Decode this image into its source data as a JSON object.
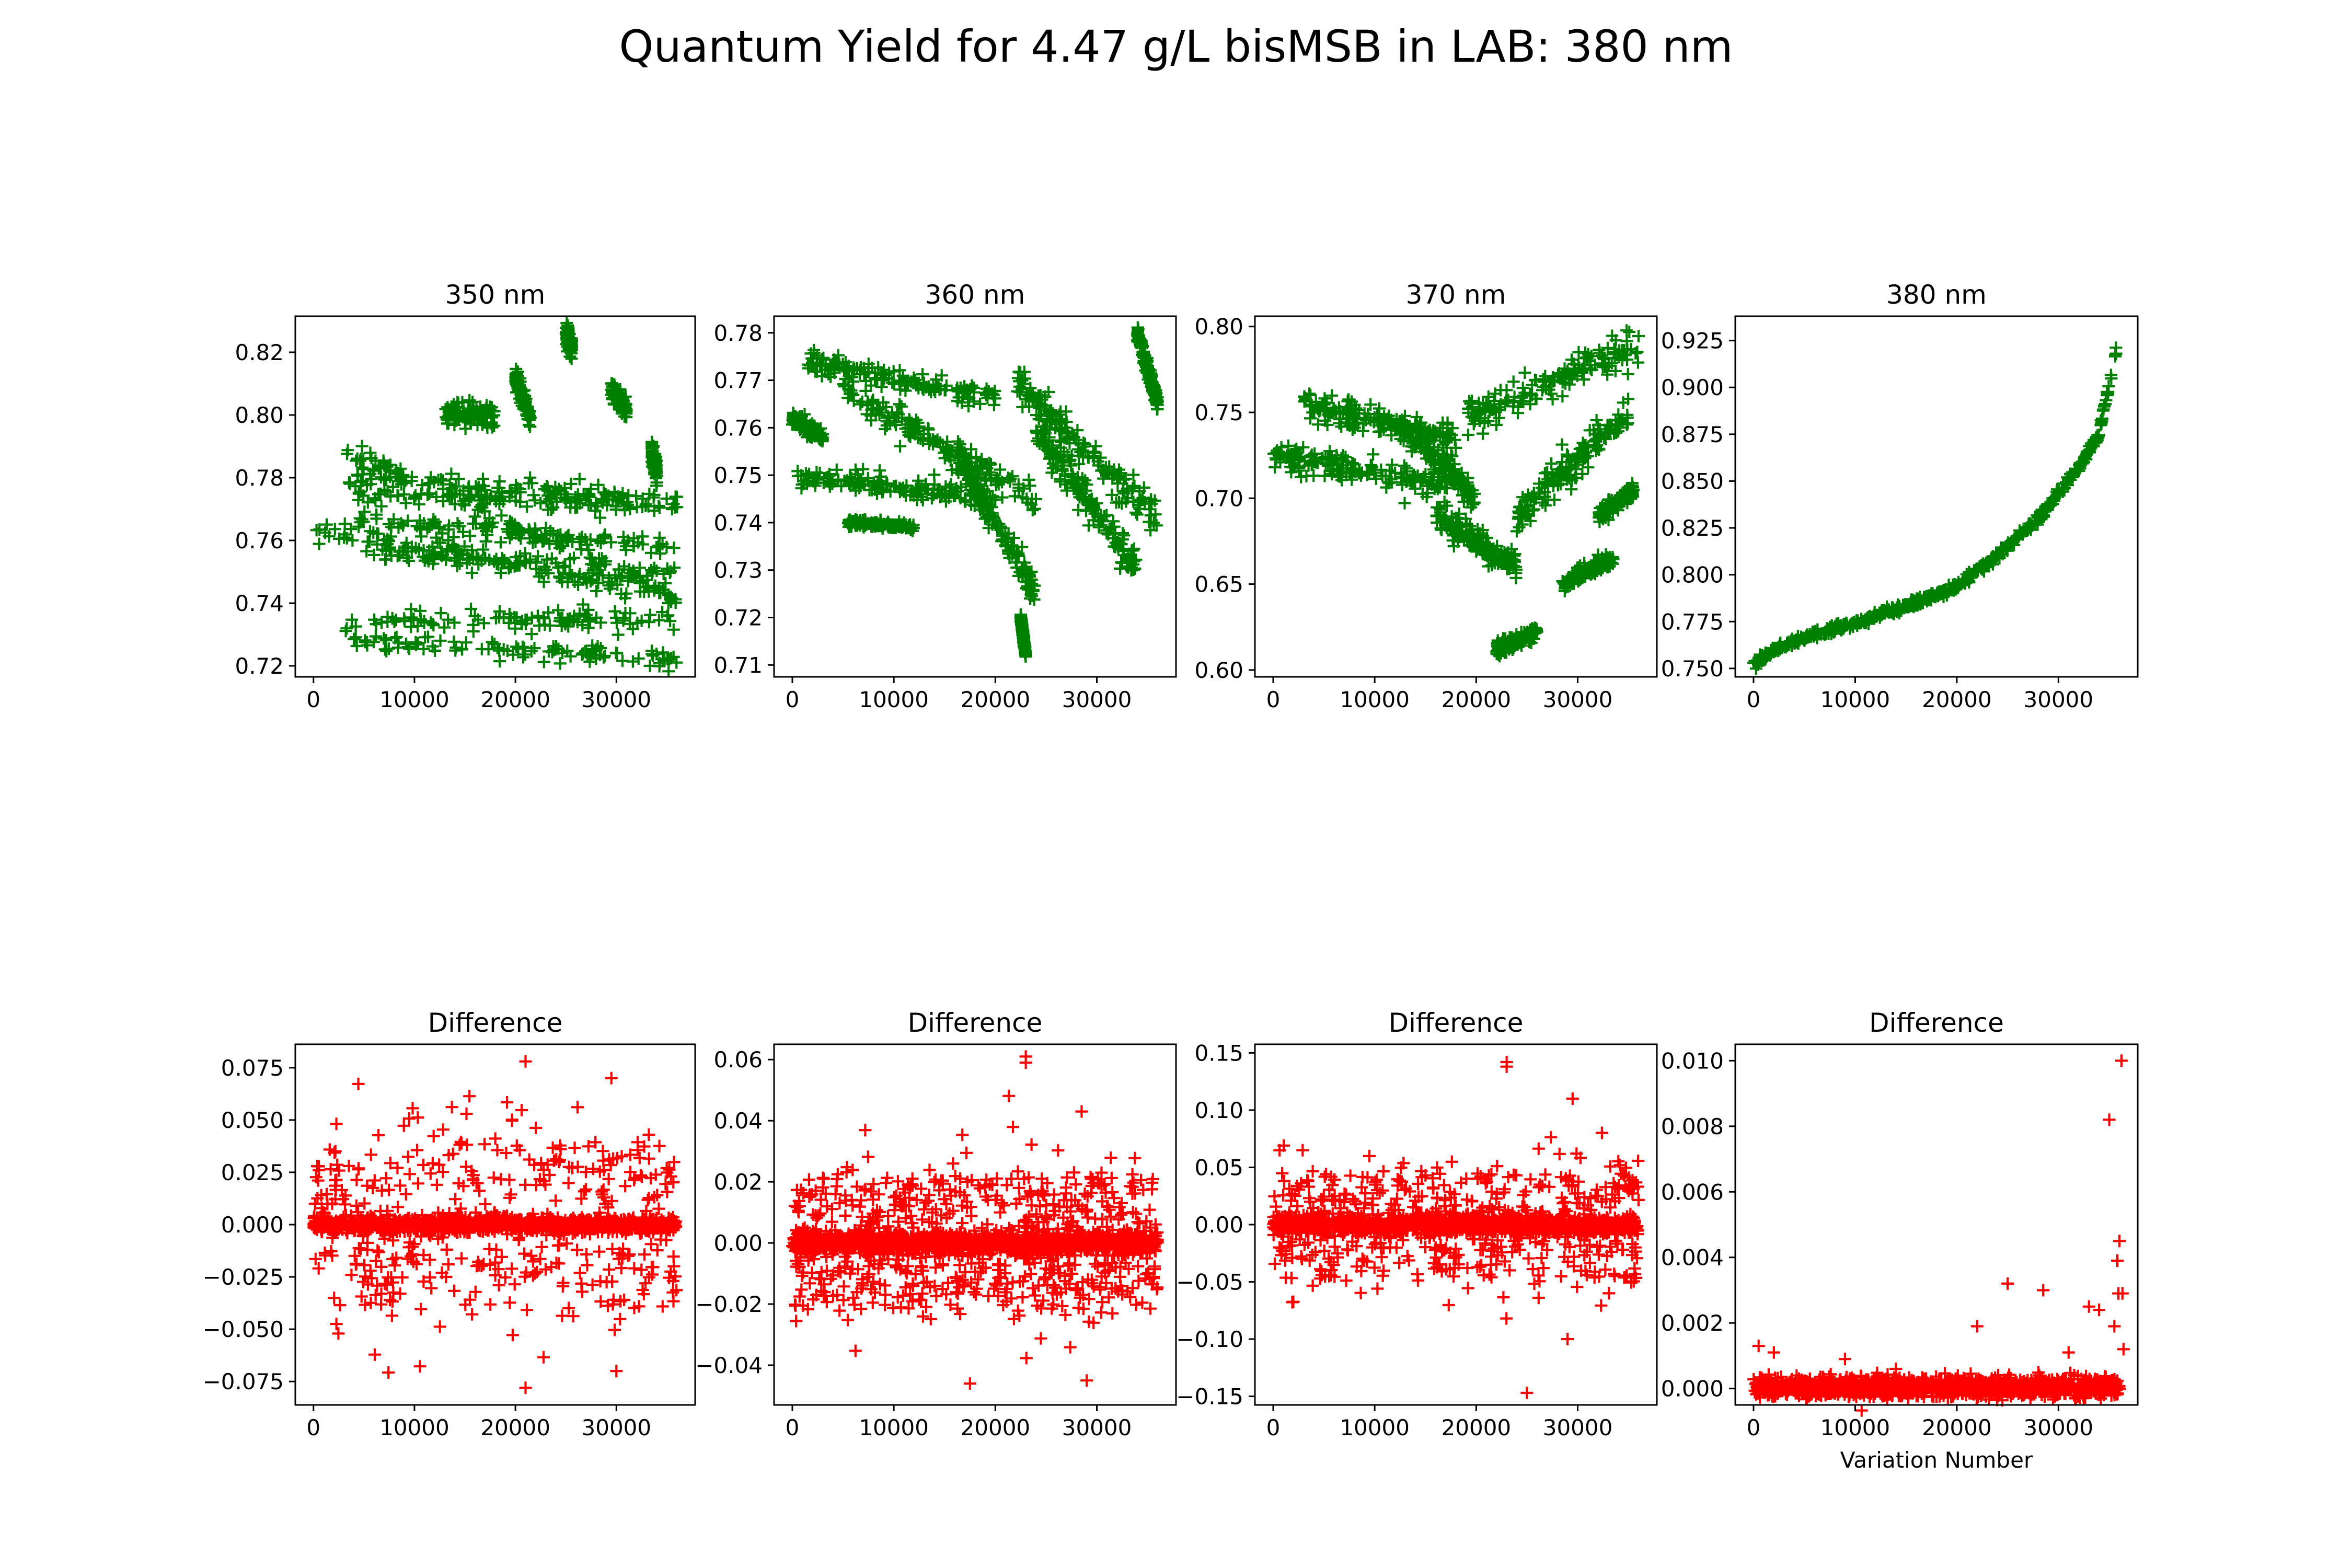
{
  "title": "Quantum Yield for 4.47 g/L bisMSB in LAB: 380 nm",
  "colors": {
    "top_markers": "#008000",
    "bottom_markers": "#ff0000",
    "axes": "#000000"
  },
  "chart_data": [
    {
      "id": "qy350",
      "row": "top",
      "col": 0,
      "type": "scatter",
      "marker": "+",
      "color": "#008000",
      "title": "350 nm",
      "xlabel": "",
      "ylabel": "",
      "xlim": [
        -1800,
        37800
      ],
      "ylim": [
        0.7165,
        0.8315
      ],
      "xticks": [
        0,
        10000,
        20000,
        30000
      ],
      "xtick_labels": [
        "0",
        "10000",
        "20000",
        "30000"
      ],
      "yticks": [
        0.72,
        0.74,
        0.76,
        0.78,
        0.8,
        0.82
      ],
      "ytick_labels": [
        "0.72",
        "0.74",
        "0.76",
        "0.78",
        "0.80",
        "0.82"
      ],
      "clusters": [
        [
          0,
          36000,
          0.764,
          0.742,
          3
        ],
        [
          3000,
          36000,
          0.789,
          0.742,
          3
        ],
        [
          3500,
          36000,
          0.781,
          0.773,
          3
        ],
        [
          4000,
          36000,
          0.728,
          0.722,
          3
        ],
        [
          3000,
          36000,
          0.734,
          0.735,
          3
        ],
        [
          3500,
          36000,
          0.775,
          0.771,
          3
        ],
        [
          4500,
          36000,
          0.766,
          0.758,
          3
        ],
        [
          5000,
          36000,
          0.757,
          0.749,
          3
        ],
        [
          13000,
          18000,
          0.8,
          0.8,
          3
        ],
        [
          20000,
          21500,
          0.812,
          0.798,
          3
        ],
        [
          25000,
          25600,
          0.826,
          0.821,
          3
        ],
        [
          29500,
          31000,
          0.808,
          0.802,
          3
        ],
        [
          33500,
          34000,
          0.788,
          0.782,
          3
        ]
      ],
      "point_count": 1400
    },
    {
      "id": "qy360",
      "row": "top",
      "col": 1,
      "type": "scatter",
      "marker": "+",
      "color": "#008000",
      "title": "360 nm",
      "xlabel": "",
      "ylabel": "",
      "xlim": [
        -1800,
        37800
      ],
      "ylim": [
        0.7075,
        0.7835
      ],
      "xticks": [
        0,
        10000,
        20000,
        30000
      ],
      "xtick_labels": [
        "0",
        "10000",
        "20000",
        "30000"
      ],
      "yticks": [
        0.71,
        0.72,
        0.73,
        0.74,
        0.75,
        0.76,
        0.77,
        0.78
      ],
      "ytick_labels": [
        "0.71",
        "0.72",
        "0.73",
        "0.74",
        "0.75",
        "0.76",
        "0.77",
        "0.78"
      ],
      "clusters": [
        [
          0,
          3000,
          0.762,
          0.758,
          2
        ],
        [
          1500,
          20000,
          0.774,
          0.766,
          3
        ],
        [
          0,
          20000,
          0.75,
          0.745,
          3
        ],
        [
          5000,
          24000,
          0.768,
          0.745,
          4
        ],
        [
          16000,
          24000,
          0.755,
          0.725,
          4
        ],
        [
          22000,
          36000,
          0.77,
          0.74,
          5
        ],
        [
          24000,
          34000,
          0.76,
          0.73,
          5
        ],
        [
          34000,
          36000,
          0.78,
          0.765,
          2
        ],
        [
          5500,
          12000,
          0.74,
          0.739,
          1
        ],
        [
          22500,
          23000,
          0.72,
          0.712,
          1
        ]
      ],
      "point_count": 1600
    },
    {
      "id": "qy370",
      "row": "top",
      "col": 2,
      "type": "scatter",
      "marker": "+",
      "color": "#008000",
      "title": "370 nm",
      "xlabel": "",
      "ylabel": "",
      "xlim": [
        -1800,
        37800
      ],
      "ylim": [
        0.596,
        0.806
      ],
      "xticks": [
        0,
        10000,
        20000,
        30000
      ],
      "xtick_labels": [
        "0",
        "10000",
        "20000",
        "30000"
      ],
      "yticks": [
        0.6,
        0.65,
        0.7,
        0.75,
        0.8
      ],
      "ytick_labels": [
        "0.60",
        "0.65",
        "0.70",
        "0.75",
        "0.80"
      ],
      "clusters": [
        [
          0,
          17000,
          0.725,
          0.708,
          4
        ],
        [
          3000,
          18000,
          0.755,
          0.735,
          4
        ],
        [
          12000,
          20000,
          0.745,
          0.7,
          4
        ],
        [
          16000,
          24000,
          0.69,
          0.66,
          4
        ],
        [
          19000,
          36000,
          0.745,
          0.79,
          5
        ],
        [
          24000,
          35000,
          0.69,
          0.75,
          5
        ],
        [
          22000,
          26000,
          0.612,
          0.622,
          2
        ],
        [
          28500,
          33500,
          0.65,
          0.665,
          2
        ],
        [
          32000,
          35500,
          0.69,
          0.705,
          2
        ]
      ],
      "point_count": 1500
    },
    {
      "id": "qy380",
      "row": "top",
      "col": 3,
      "type": "scatter",
      "marker": "+",
      "color": "#008000",
      "title": "380 nm",
      "xlabel": "",
      "ylabel": "",
      "xlim": [
        -1800,
        37800
      ],
      "ylim": [
        0.7455,
        0.938
      ],
      "xticks": [
        0,
        10000,
        20000,
        30000
      ],
      "xtick_labels": [
        "0",
        "10000",
        "20000",
        "30000"
      ],
      "yticks": [
        0.75,
        0.775,
        0.8,
        0.825,
        0.85,
        0.875,
        0.9,
        0.925
      ],
      "ytick_labels": [
        "0.750",
        "0.775",
        "0.800",
        "0.825",
        "0.850",
        "0.875",
        "0.900",
        "0.925"
      ],
      "curve": {
        "x": [
          0,
          2000,
          5000,
          10000,
          15000,
          20000,
          24000,
          28000,
          32000,
          34000,
          35000,
          36000
        ],
        "y": [
          0.752,
          0.76,
          0.767,
          0.774,
          0.783,
          0.794,
          0.81,
          0.83,
          0.857,
          0.875,
          0.9,
          0.93
        ]
      },
      "point_count": 600
    },
    {
      "id": "diff350",
      "row": "bottom",
      "col": 0,
      "type": "scatter",
      "marker": "+",
      "color": "#ff0000",
      "title": "Difference",
      "xlabel": "",
      "ylabel": "",
      "xlim": [
        -1800,
        37800
      ],
      "ylim": [
        -0.0862,
        0.0862
      ],
      "xticks": [
        0,
        10000,
        20000,
        30000
      ],
      "xtick_labels": [
        "0",
        "10000",
        "20000",
        "30000"
      ],
      "yticks": [
        -0.075,
        -0.05,
        -0.025,
        0.0,
        0.025,
        0.05,
        0.075
      ],
      "ytick_labels": [
        "−0.075",
        "−0.050",
        "−0.025",
        "0.000",
        "0.025",
        "0.050",
        "0.075"
      ],
      "spread": 0.055,
      "band": 0.0018,
      "band_count": 1100,
      "spread_count": 420,
      "outliers": [
        [
          21000,
          0.078
        ],
        [
          21000,
          -0.078
        ],
        [
          30000,
          -0.07
        ],
        [
          29500,
          0.07
        ]
      ]
    },
    {
      "id": "diff360",
      "row": "bottom",
      "col": 1,
      "type": "scatter",
      "marker": "+",
      "color": "#ff0000",
      "title": "Difference",
      "xlabel": "",
      "ylabel": "",
      "xlim": [
        -1800,
        37800
      ],
      "ylim": [
        -0.053,
        0.065
      ],
      "xticks": [
        0,
        10000,
        20000,
        30000
      ],
      "xtick_labels": [
        "0",
        "10000",
        "20000",
        "30000"
      ],
      "yticks": [
        -0.04,
        -0.02,
        0.0,
        0.02,
        0.04,
        0.06
      ],
      "ytick_labels": [
        "−0.04",
        "−0.02",
        "0.00",
        "0.02",
        "0.04",
        "0.06"
      ],
      "spread": 0.03,
      "band": 0.0018,
      "band_count": 1200,
      "spread_count": 650,
      "outliers": [
        [
          23000,
          0.061
        ],
        [
          23000,
          0.059
        ],
        [
          17500,
          -0.046
        ],
        [
          29000,
          -0.045
        ],
        [
          28500,
          0.043
        ]
      ]
    },
    {
      "id": "diff370",
      "row": "bottom",
      "col": 2,
      "type": "scatter",
      "marker": "+",
      "color": "#ff0000",
      "title": "Difference",
      "xlabel": "",
      "ylabel": "",
      "xlim": [
        -1800,
        37800
      ],
      "ylim": [
        -0.1575,
        0.1575
      ],
      "xticks": [
        0,
        10000,
        20000,
        30000
      ],
      "xtick_labels": [
        "0",
        "10000",
        "20000",
        "30000"
      ],
      "yticks": [
        -0.15,
        -0.1,
        -0.05,
        0.0,
        0.05,
        0.1,
        0.15
      ],
      "ytick_labels": [
        "−0.15",
        "−0.10",
        "−0.05",
        "0.00",
        "0.05",
        "0.10",
        "0.15"
      ],
      "spread": 0.065,
      "band": 0.004,
      "band_count": 1100,
      "spread_count": 500,
      "outliers": [
        [
          23000,
          0.142
        ],
        [
          23000,
          0.138
        ],
        [
          25000,
          -0.147
        ],
        [
          29500,
          0.11
        ],
        [
          29000,
          -0.1
        ]
      ]
    },
    {
      "id": "diff380",
      "row": "bottom",
      "col": 3,
      "type": "scatter",
      "marker": "+",
      "color": "#ff0000",
      "title": "Difference",
      "xlabel": "Variation Number",
      "ylabel": "",
      "xlim": [
        -1800,
        37800
      ],
      "ylim": [
        -0.0005,
        0.0105
      ],
      "xticks": [
        0,
        10000,
        20000,
        30000
      ],
      "xtick_labels": [
        "0",
        "10000",
        "20000",
        "30000"
      ],
      "yticks": [
        0.0,
        0.002,
        0.004,
        0.006,
        0.008,
        0.01
      ],
      "ytick_labels": [
        "0.000",
        "0.002",
        "0.004",
        "0.006",
        "0.008",
        "0.010"
      ],
      "baseline": 5e-05,
      "band": 0.00015,
      "band_count": 1200,
      "outliers": [
        [
          500,
          0.0013
        ],
        [
          2000,
          0.0011
        ],
        [
          9000,
          0.0009
        ],
        [
          14000,
          0.0006
        ],
        [
          22000,
          0.0019
        ],
        [
          25000,
          0.0032
        ],
        [
          28500,
          0.003
        ],
        [
          31000,
          0.0011
        ],
        [
          33000,
          0.0025
        ],
        [
          34000,
          0.0024
        ],
        [
          35000,
          0.0082
        ],
        [
          35500,
          0.0019
        ],
        [
          35800,
          0.0039
        ],
        [
          35900,
          0.0029
        ],
        [
          36000,
          0.0045
        ],
        [
          36200,
          0.01
        ],
        [
          36300,
          0.0029
        ],
        [
          36400,
          0.0012
        ]
      ]
    }
  ]
}
